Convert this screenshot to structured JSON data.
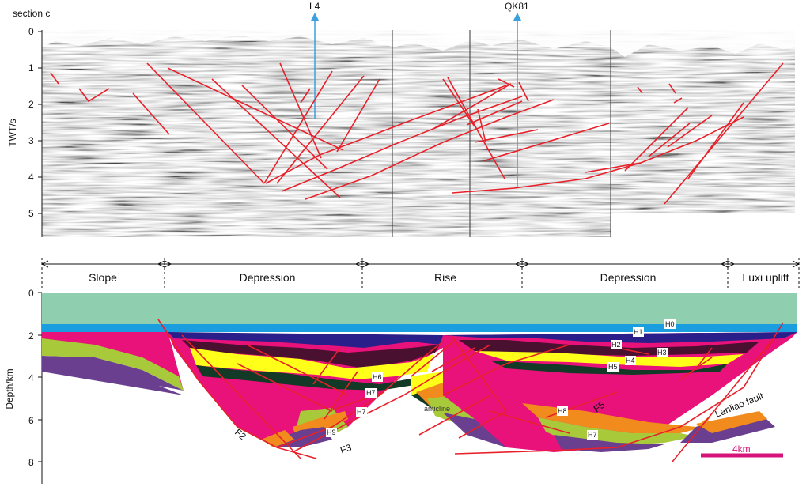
{
  "top_panel": {
    "section_label": "section c",
    "y_axis_label": "TWT/s",
    "y_ticks": [
      "0",
      "1",
      "2",
      "3",
      "4",
      "5"
    ],
    "well_labels": [
      "L4",
      "QK81"
    ]
  },
  "bottom_panel": {
    "y_axis_label": "Depth/km",
    "y_ticks": [
      "0",
      "2",
      "4",
      "6",
      "8"
    ],
    "zones": [
      "Slope",
      "Depression",
      "Rise",
      "Depression",
      "Luxi uplift"
    ],
    "horizon_labels": [
      "H0",
      "H1",
      "H2",
      "H3",
      "H4",
      "H5",
      "H6",
      "H7",
      "H8",
      "H9"
    ],
    "fault_labels": [
      "F2",
      "F3",
      "F5",
      "Lanliao fault"
    ],
    "structure_label": "anticline",
    "scale_bar": "4km"
  },
  "colors": {
    "water": "#8fcfb0",
    "blue_layer": "#1a9ee0",
    "dark_blue_layer": "#2a1f8a",
    "maroon_layer": "#4a1030",
    "yellow_layer": "#ffff1a",
    "dark_green_layer": "#123a26",
    "magenta_layer": "#e8127a",
    "orange_layer": "#f28b1e",
    "olive_layer": "#a8c93a",
    "purple_layer": "#6a3f8f",
    "fault_red": "#e8202a",
    "well_blue": "#3aa0e0",
    "scale_bar": "#d6137a"
  }
}
